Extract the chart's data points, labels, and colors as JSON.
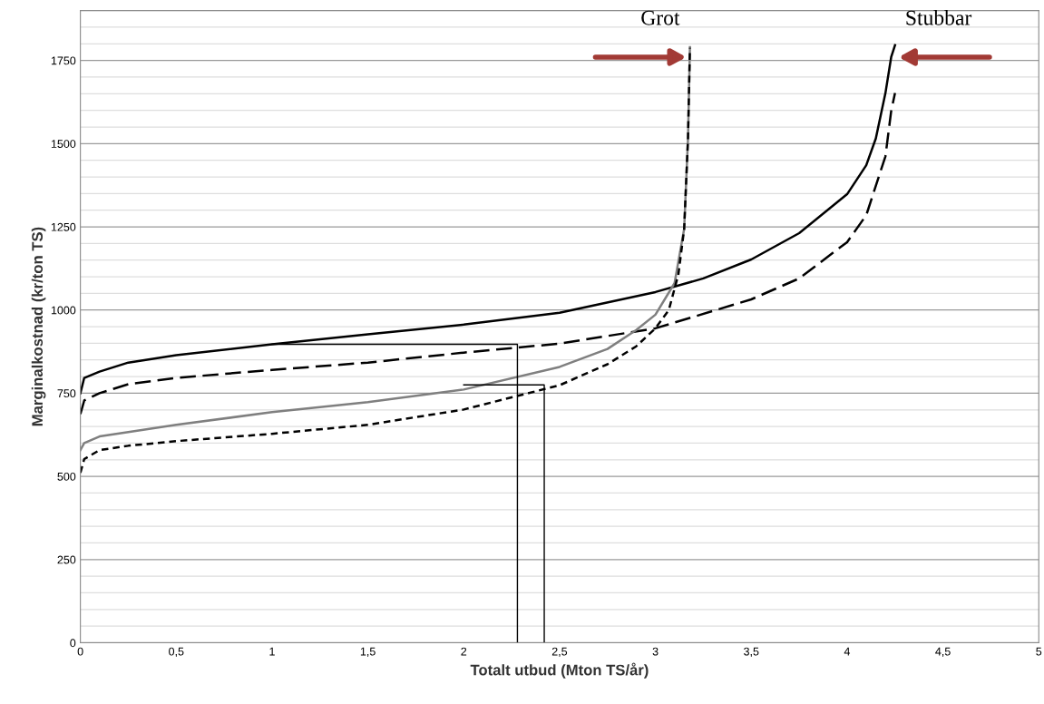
{
  "chart_data": {
    "type": "line",
    "xlabel": "Totalt utbud (Mton TS/år)",
    "ylabel": "Marginalkostnad (kr/ton TS)",
    "xlim": [
      0,
      5
    ],
    "ylim": [
      0,
      1900
    ],
    "xticks": [
      0,
      {
        "value": 0.5,
        "label": "0,5"
      },
      1,
      {
        "value": 1.5,
        "label": "1,5"
      },
      2,
      {
        "value": 2.5,
        "label": "2,5"
      },
      3,
      {
        "value": 3.5,
        "label": "3,5"
      },
      4,
      {
        "value": 4.5,
        "label": "4,5"
      },
      5
    ],
    "yticks": [
      0,
      {
        "value": 50,
        "label": null
      },
      {
        "value": 100,
        "label": null
      },
      {
        "value": 150,
        "label": null
      },
      {
        "value": 200,
        "label": null
      },
      250,
      {
        "value": 300,
        "label": null
      },
      {
        "value": 350,
        "label": null
      },
      {
        "value": 400,
        "label": null
      },
      {
        "value": 450,
        "label": null
      },
      500,
      {
        "value": 550,
        "label": null
      },
      {
        "value": 600,
        "label": null
      },
      {
        "value": 650,
        "label": null
      },
      {
        "value": 700,
        "label": null
      },
      750,
      {
        "value": 800,
        "label": null
      },
      {
        "value": 850,
        "label": null
      },
      {
        "value": 900,
        "label": null
      },
      {
        "value": 950,
        "label": null
      },
      1000,
      {
        "value": 1050,
        "label": null
      },
      {
        "value": 1100,
        "label": null
      },
      {
        "value": 1150,
        "label": null
      },
      {
        "value": 1200,
        "label": null
      },
      1250,
      {
        "value": 1300,
        "label": null
      },
      {
        "value": 1350,
        "label": null
      },
      {
        "value": 1400,
        "label": null
      },
      {
        "value": 1450,
        "label": null
      },
      1500,
      {
        "value": 1550,
        "label": null
      },
      {
        "value": 1600,
        "label": null
      },
      {
        "value": 1650,
        "label": null
      },
      {
        "value": 1700,
        "label": null
      },
      1750,
      {
        "value": 1800,
        "label": null
      },
      {
        "value": 1850,
        "label": null
      },
      {
        "value": 1900,
        "label": null
      }
    ],
    "grid": "y",
    "legend": false,
    "marker": "none",
    "series": [
      {
        "color": "#000000",
        "line_style": "solid",
        "x": [
          0,
          0.02,
          0.1,
          0.25,
          0.5,
          1,
          1.5,
          2,
          2.5,
          3,
          3.25,
          3.5,
          3.75,
          4,
          4.1,
          4.15,
          4.2,
          4.23,
          4.25
        ],
        "values": [
          750,
          796,
          815,
          842,
          864,
          897,
          927,
          956,
          992,
          1054,
          1095,
          1152,
          1231,
          1348,
          1435,
          1516,
          1652,
          1760,
          1796
        ]
      },
      {
        "color": "#000000",
        "line_style": "dashed",
        "x": [
          0,
          0.02,
          0.1,
          0.25,
          0.5,
          1,
          1.5,
          2,
          2.5,
          3,
          3.5,
          3.75,
          4,
          4.1,
          4.2,
          4.23,
          4.25
        ],
        "values": [
          687,
          728,
          750,
          777,
          796,
          820,
          842,
          872,
          899,
          945,
          1032,
          1095,
          1204,
          1285,
          1462,
          1598,
          1652
        ]
      },
      {
        "color": "#7f7f7f",
        "line_style": "solid",
        "x": [
          0,
          0.02,
          0.1,
          0.25,
          0.5,
          1,
          1.5,
          2,
          2.5,
          2.75,
          2.9,
          3.0,
          3.1,
          3.15,
          3.17,
          3.18
        ],
        "values": [
          579,
          600,
          620,
          633,
          655,
          693,
          723,
          761,
          829,
          883,
          940,
          986,
          1081,
          1244,
          1516,
          1790
        ]
      },
      {
        "color": "#000000",
        "line_style": "dotted",
        "x": [
          0,
          0.02,
          0.1,
          0.25,
          0.5,
          1,
          1.5,
          2,
          2.5,
          2.75,
          2.9,
          3.0,
          3.07,
          3.12,
          3.15,
          3.17,
          3.18
        ],
        "values": [
          511,
          552,
          579,
          592,
          606,
          628,
          655,
          701,
          774,
          837,
          891,
          945,
          1000,
          1108,
          1244,
          1516,
          1788
        ]
      },
      {
        "color": "#000000",
        "line_style": "solid",
        "x": [
          1,
          2.28,
          2.28
        ],
        "values": [
          897,
          897,
          0
        ]
      },
      {
        "color": "#000000",
        "line_style": "solid",
        "x": [
          2,
          2.42,
          2.42
        ],
        "values": [
          775,
          775,
          0
        ]
      }
    ],
    "annotations": [
      {
        "text": "Grot",
        "x": 3.18,
        "y": 1760
      },
      {
        "text": "Stubbar",
        "x": 4.25,
        "y": 1760
      }
    ]
  }
}
